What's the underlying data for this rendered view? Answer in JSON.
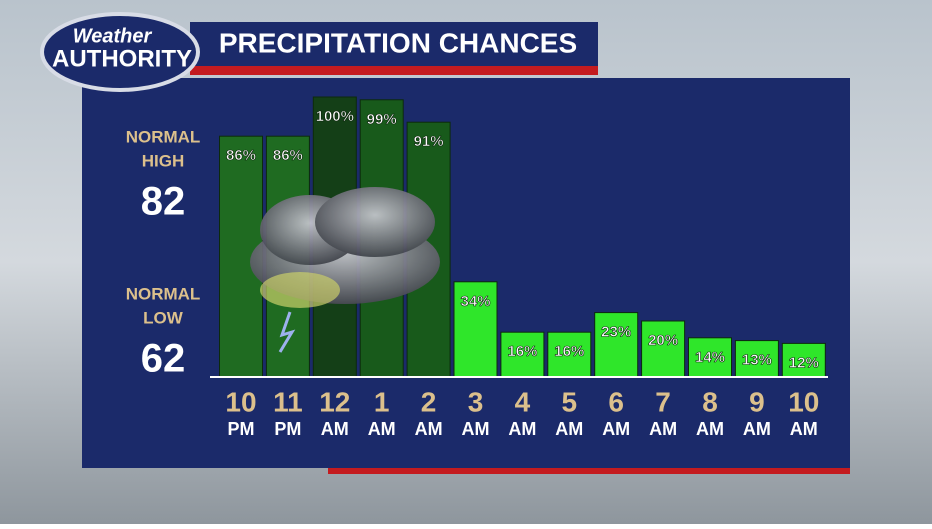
{
  "logo": {
    "line1": "Weather",
    "line2": "AUTHORITY"
  },
  "normals": [
    {
      "label": [
        "NORMAL",
        "HIGH"
      ],
      "value": 82
    },
    {
      "label": [
        "NORMAL",
        "LOW"
      ],
      "value": 62
    }
  ],
  "chart_data": {
    "type": "bar",
    "title": "PRECIPITATION CHANCES",
    "categories": [
      [
        "10",
        "PM"
      ],
      [
        "11",
        "PM"
      ],
      [
        "12",
        "AM"
      ],
      [
        "1",
        "AM"
      ],
      [
        "2",
        "AM"
      ],
      [
        "3",
        "AM"
      ],
      [
        "4",
        "AM"
      ],
      [
        "5",
        "AM"
      ],
      [
        "6",
        "AM"
      ],
      [
        "7",
        "AM"
      ],
      [
        "8",
        "AM"
      ],
      [
        "9",
        "AM"
      ],
      [
        "10",
        "AM"
      ]
    ],
    "values": [
      86,
      86,
      100,
      99,
      91,
      34,
      16,
      16,
      23,
      20,
      14,
      13,
      12
    ],
    "value_labels": [
      "86%",
      "86%",
      "100%",
      "99%",
      "91%",
      "34%",
      "16%",
      "16%",
      "23%",
      "20%",
      "14%",
      "13%",
      "12%"
    ],
    "colors": [
      "#1f6b21",
      "#1f6b21",
      "#143f17",
      "#185a1b",
      "#185a1b",
      "#2fe62a",
      "#2fe62a",
      "#2fe62a",
      "#2fe62a",
      "#2fe62a",
      "#2fe62a",
      "#2fe62a",
      "#2fe62a"
    ]
  }
}
